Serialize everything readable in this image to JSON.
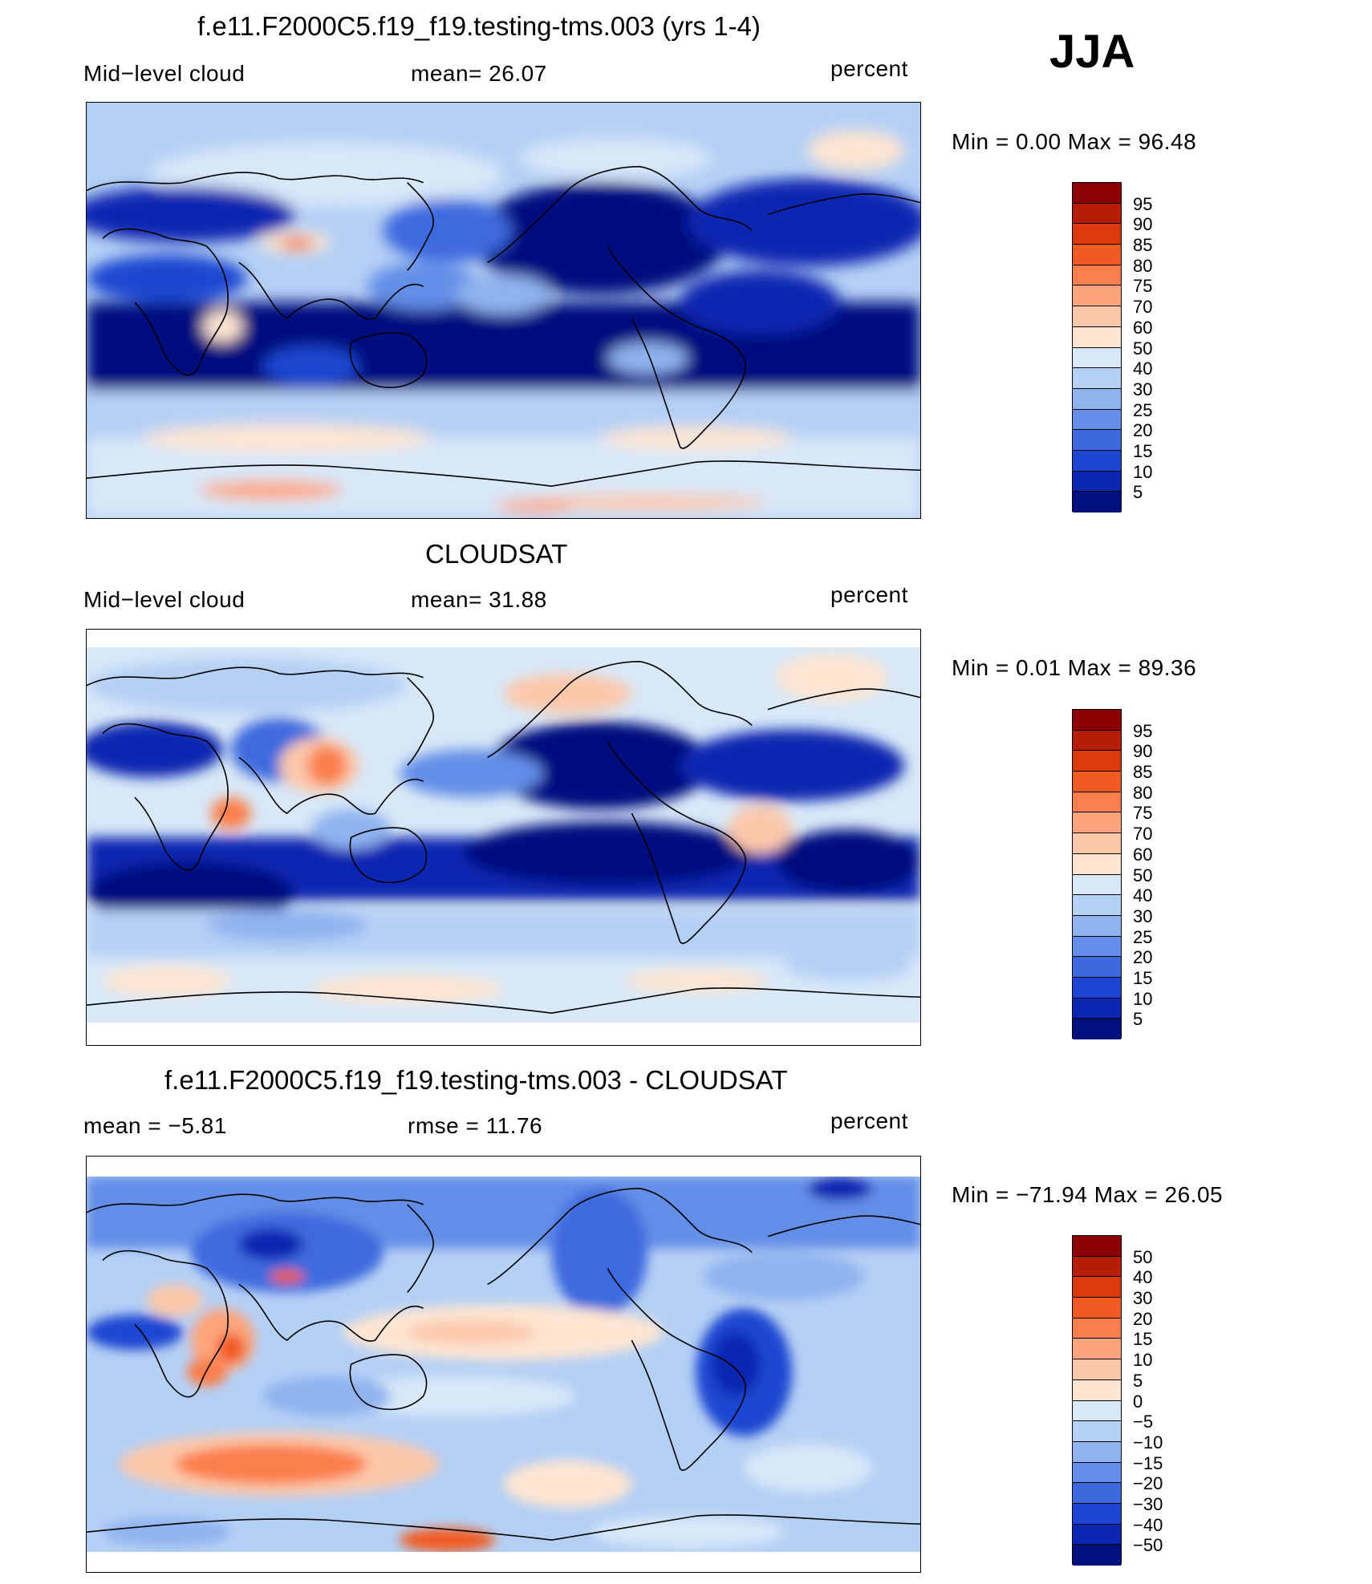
{
  "season": "JJA",
  "panels": [
    {
      "title": "f.e11.F2000C5.f19_f19.testing-tms.003 (yrs 1-4)",
      "left": "Mid−level cloud",
      "center": "mean=   26.07",
      "right": "percent",
      "minmax": "Min =    0.00 Max =   96.48",
      "levels": [
        "95",
        "90",
        "85",
        "80",
        "75",
        "70",
        "60",
        "50",
        "40",
        "30",
        "25",
        "20",
        "15",
        "10",
        "5"
      ],
      "colors": [
        "#8b0000",
        "#b51d06",
        "#da3a0c",
        "#f05b24",
        "#fb7f4c",
        "#fea47c",
        "#fcc8aa",
        "#fde5d2",
        "#d8e8f8",
        "#b5d0f5",
        "#8fb3ef",
        "#648ee7",
        "#3c6ade",
        "#1c46d2",
        "#0b27b1",
        "#00107f"
      ]
    },
    {
      "title": "CLOUDSAT",
      "left": "Mid−level cloud",
      "center": "mean=   31.88",
      "right": "percent",
      "minmax": "Min =    0.01 Max =   89.36",
      "levels": [
        "95",
        "90",
        "85",
        "80",
        "75",
        "70",
        "60",
        "50",
        "40",
        "30",
        "25",
        "20",
        "15",
        "10",
        "5"
      ],
      "colors": [
        "#8b0000",
        "#b51d06",
        "#da3a0c",
        "#f05b24",
        "#fb7f4c",
        "#fea47c",
        "#fcc8aa",
        "#fde5d2",
        "#d8e8f8",
        "#b5d0f5",
        "#8fb3ef",
        "#648ee7",
        "#3c6ade",
        "#1c46d2",
        "#0b27b1",
        "#00107f"
      ]
    },
    {
      "title": "f.e11.F2000C5.f19_f19.testing-tms.003 - CLOUDSAT",
      "left": "mean =   −5.81",
      "center": "rmse =   11.76",
      "right": "percent",
      "minmax": "Min = −71.94 Max =   26.05",
      "levels": [
        "50",
        "40",
        "30",
        "20",
        "15",
        "10",
        "5",
        "0",
        "−5",
        "−10",
        "−15",
        "−20",
        "−30",
        "−40",
        "−50"
      ],
      "colors": [
        "#8b0000",
        "#b51d06",
        "#da3a0c",
        "#f05b24",
        "#fb7f4c",
        "#fea47c",
        "#fcc8aa",
        "#fde5d2",
        "#d8e8f8",
        "#b5d0f5",
        "#8fb3ef",
        "#648ee7",
        "#3c6ade",
        "#1c46d2",
        "#0b27b1",
        "#00107f"
      ]
    }
  ]
}
